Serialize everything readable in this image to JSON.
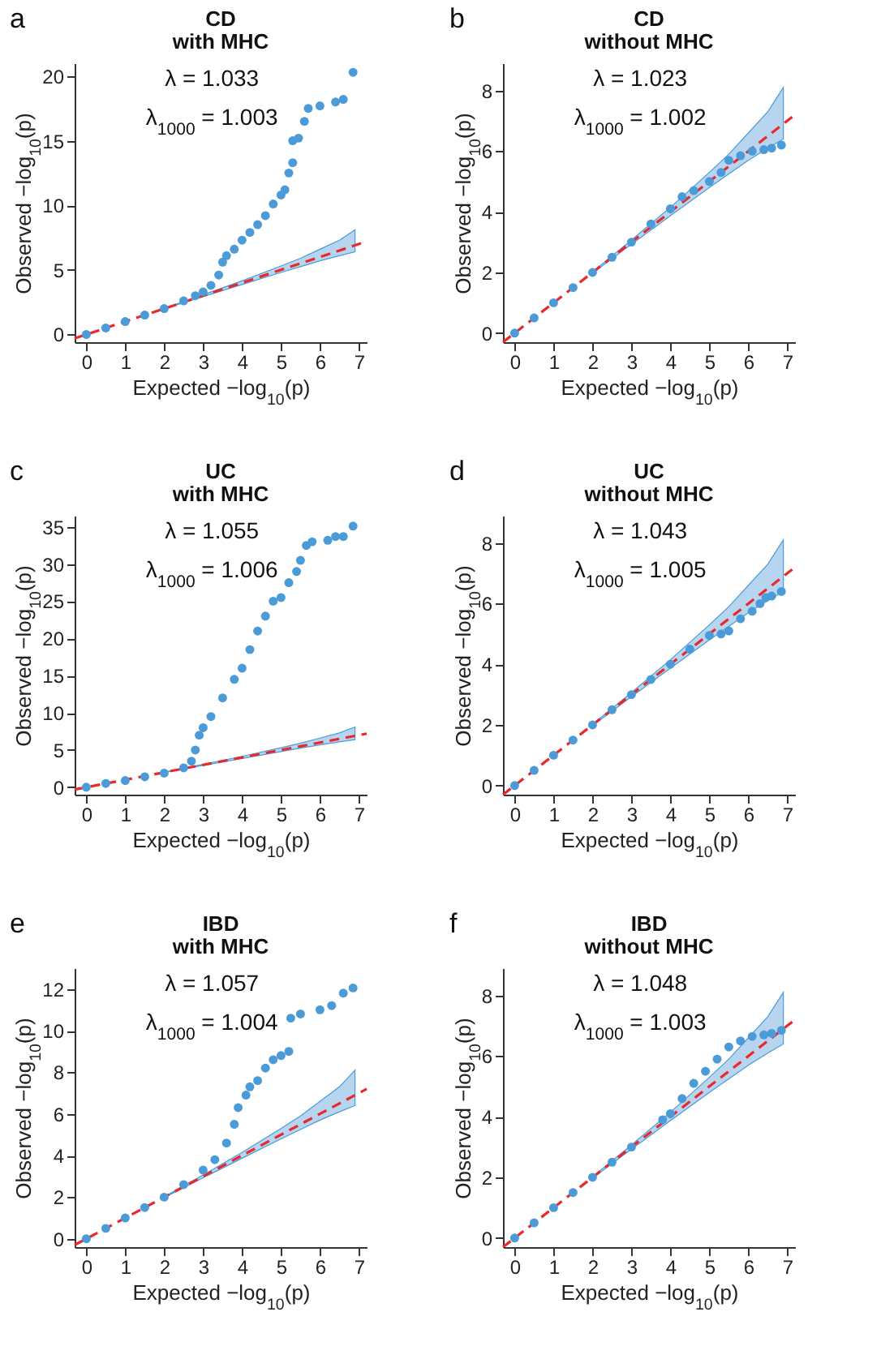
{
  "chart_data": [
    {
      "type": "scatter",
      "title": "CD",
      "subtitle": "with MHC",
      "xlabel": "Expected −log$_{10}$(p)",
      "ylabel": "Observed −log$_{10}$(p)",
      "annotations": [
        "a",
        "λ = 1.033",
        "λ$_{1000}$ = 1.003"
      ],
      "xlim": [
        -0.3,
        7.2
      ],
      "ylim": [
        -0.6,
        21
      ],
      "xticks": [
        0,
        1,
        2,
        3,
        4,
        5,
        6,
        7
      ],
      "yticks": [
        0,
        5,
        10,
        15,
        20
      ],
      "grid": false,
      "series": [
        {
          "type": "line",
          "color": "#e8282b",
          "line_style": "dashed",
          "marker": "none",
          "x": [
            -0.3,
            2,
            3,
            4,
            5,
            5.5,
            6,
            6.5,
            6.9,
            7.2
          ],
          "values": [
            -0.3,
            2,
            3,
            4,
            5,
            5.5,
            6,
            6.5,
            6.9,
            7.2
          ],
          "lower": [
            null,
            1.98,
            2.93,
            3.87,
            4.8,
            5.25,
            5.7,
            6.1,
            6.4,
            null
          ],
          "upper": [
            null,
            2.02,
            3.07,
            4.15,
            5.3,
            5.9,
            6.6,
            7.3,
            8.1,
            null
          ]
        },
        {
          "color": "#4b9bd8",
          "marker": "circle",
          "x": [
            0,
            0.5,
            1,
            1.5,
            2,
            2.5,
            2.8,
            3,
            3.2,
            3.4,
            3.5,
            3.6,
            3.8,
            4,
            4.2,
            4.4,
            4.6,
            4.8,
            5,
            5.1,
            5.2,
            5.3,
            5.3,
            5.45,
            5.6,
            5.7,
            6,
            6.4,
            6.6,
            6.85
          ],
          "values": [
            0,
            0.5,
            1,
            1.5,
            2,
            2.6,
            3,
            3.3,
            3.8,
            4.6,
            5.6,
            6.1,
            6.6,
            7.3,
            7.9,
            8.5,
            9.2,
            10.1,
            10.8,
            11.2,
            12.5,
            13.3,
            15,
            15.2,
            16.5,
            17.5,
            17.7,
            18,
            18.2,
            20.3
          ]
        }
      ]
    },
    {
      "type": "scatter",
      "title": "CD",
      "subtitle": "without MHC",
      "xlabel": "Expected −log$_{10}$(p)",
      "ylabel": "Observed −log$_{10}$(p)",
      "annotations": [
        "b",
        "λ = 1.023",
        "λ$_{1000}$ = 1.002"
      ],
      "xlim": [
        -0.3,
        7.2
      ],
      "ylim": [
        -0.3,
        8.9
      ],
      "xticks": [
        0,
        1,
        2,
        3,
        4,
        5,
        6,
        7
      ],
      "yticks": [
        0,
        2,
        4,
        6,
        8
      ],
      "grid": false,
      "series": [
        {
          "type": "line",
          "color": "#e8282b",
          "line_style": "dashed",
          "marker": "none",
          "x": [
            -0.3,
            2,
            3,
            4,
            5,
            5.5,
            6,
            6.5,
            6.9,
            7.2
          ],
          "values": [
            -0.3,
            2,
            3,
            4,
            5,
            5.5,
            6,
            6.5,
            6.9,
            7.2
          ],
          "lower": [
            null,
            1.98,
            2.93,
            3.87,
            4.8,
            5.25,
            5.7,
            6.1,
            6.4,
            null
          ],
          "upper": [
            null,
            2.02,
            3.07,
            4.15,
            5.3,
            5.9,
            6.6,
            7.3,
            8.1,
            null
          ]
        },
        {
          "color": "#4b9bd8",
          "marker": "circle",
          "x": [
            0,
            0.5,
            1,
            1.5,
            2,
            2.5,
            3,
            3.5,
            4,
            4.3,
            4.6,
            5,
            5.3,
            5.5,
            5.8,
            6.1,
            6.4,
            6.6,
            6.85
          ],
          "values": [
            0,
            0.5,
            1,
            1.5,
            2,
            2.5,
            3,
            3.6,
            4.1,
            4.5,
            4.7,
            5,
            5.3,
            5.7,
            5.85,
            6,
            6.05,
            6.1,
            6.2
          ]
        }
      ]
    },
    {
      "type": "scatter",
      "title": "UC",
      "subtitle": "with MHC",
      "xlabel": "Expected −log$_{10}$(p)",
      "ylabel": "Observed −log$_{10}$(p)",
      "annotations": [
        "c",
        "λ = 1.055",
        "λ$_{1000}$ = 1.006"
      ],
      "xlim": [
        -0.3,
        7.2
      ],
      "ylim": [
        -1,
        36.5
      ],
      "xticks": [
        0,
        1,
        2,
        3,
        4,
        5,
        6,
        7
      ],
      "yticks": [
        0,
        5,
        10,
        15,
        20,
        25,
        30,
        35
      ],
      "grid": false,
      "series": [
        {
          "type": "line",
          "color": "#e8282b",
          "line_style": "dashed",
          "marker": "none",
          "x": [
            -0.3,
            2,
            3,
            4,
            5,
            5.5,
            6,
            6.5,
            6.9,
            7.2
          ],
          "values": [
            -0.3,
            2,
            3,
            4,
            5,
            5.5,
            6,
            6.5,
            6.9,
            7.2
          ],
          "lower": [
            null,
            1.98,
            2.93,
            3.87,
            4.8,
            5.25,
            5.7,
            6.1,
            6.4,
            null
          ],
          "upper": [
            null,
            2.02,
            3.07,
            4.15,
            5.3,
            5.9,
            6.6,
            7.3,
            8.1,
            null
          ]
        },
        {
          "color": "#4b9bd8",
          "marker": "circle",
          "x": [
            0,
            0.5,
            1,
            1.5,
            2,
            2.5,
            2.7,
            2.8,
            2.9,
            3,
            3.2,
            3.5,
            3.8,
            4,
            4.2,
            4.4,
            4.6,
            4.8,
            5,
            5.2,
            5.4,
            5.5,
            5.65,
            5.8,
            6.2,
            6.4,
            6.6,
            6.85
          ],
          "values": [
            0,
            0.5,
            0.9,
            1.4,
            1.9,
            2.6,
            3.5,
            5,
            7,
            8,
            9.5,
            12,
            14.5,
            16,
            18.5,
            21,
            23,
            25,
            25.5,
            27.5,
            29,
            30.5,
            32.5,
            33,
            33.2,
            33.7,
            33.7,
            35.1
          ]
        }
      ]
    },
    {
      "type": "scatter",
      "title": "UC",
      "subtitle": "without MHC",
      "xlabel": "Expected −log$_{10}$(p)",
      "ylabel": "Observed −log$_{10}$(p)",
      "annotations": [
        "d",
        "λ = 1.043",
        "λ$_{1000}$ = 1.005"
      ],
      "xlim": [
        -0.3,
        7.2
      ],
      "ylim": [
        -0.3,
        8.9
      ],
      "xticks": [
        0,
        1,
        2,
        3,
        4,
        5,
        6,
        7
      ],
      "yticks": [
        0,
        2,
        4,
        6,
        8
      ],
      "grid": false,
      "series": [
        {
          "type": "line",
          "color": "#e8282b",
          "line_style": "dashed",
          "marker": "none",
          "x": [
            -0.3,
            2,
            3,
            4,
            5,
            5.5,
            6,
            6.5,
            6.9,
            7.2
          ],
          "values": [
            -0.3,
            2,
            3,
            4,
            5,
            5.5,
            6,
            6.5,
            6.9,
            7.2
          ],
          "lower": [
            null,
            1.98,
            2.93,
            3.87,
            4.8,
            5.25,
            5.7,
            6.1,
            6.4,
            null
          ],
          "upper": [
            null,
            2.02,
            3.07,
            4.15,
            5.3,
            5.9,
            6.6,
            7.3,
            8.1,
            null
          ]
        },
        {
          "color": "#4b9bd8",
          "marker": "circle",
          "x": [
            0,
            0.5,
            1,
            1.5,
            2,
            2.5,
            3,
            3.5,
            4,
            4.5,
            5,
            5.3,
            5.5,
            5.8,
            6.1,
            6.3,
            6.45,
            6.6,
            6.85
          ],
          "values": [
            0,
            0.5,
            1,
            1.5,
            2,
            2.5,
            3,
            3.5,
            4,
            4.5,
            4.95,
            5,
            5.1,
            5.5,
            5.75,
            6,
            6.2,
            6.25,
            6.4
          ]
        }
      ]
    },
    {
      "type": "scatter",
      "title": "IBD",
      "subtitle": "with MHC",
      "xlabel": "Expected −log$_{10}$(p)",
      "ylabel": "Observed −log$_{10}$(p)",
      "annotations": [
        "e",
        "λ = 1.057",
        "λ$_{1000}$ = 1.004"
      ],
      "xlim": [
        -0.3,
        7.2
      ],
      "ylim": [
        -0.4,
        13
      ],
      "xticks": [
        0,
        1,
        2,
        3,
        4,
        5,
        6,
        7
      ],
      "yticks": [
        0,
        2,
        4,
        6,
        8,
        10,
        12
      ],
      "grid": false,
      "series": [
        {
          "type": "line",
          "color": "#e8282b",
          "line_style": "dashed",
          "marker": "none",
          "x": [
            -0.3,
            2,
            3,
            4,
            5,
            5.5,
            6,
            6.5,
            6.9,
            7.2
          ],
          "values": [
            -0.3,
            2,
            3,
            4,
            5,
            5.5,
            6,
            6.5,
            6.9,
            7.2
          ],
          "lower": [
            null,
            1.98,
            2.93,
            3.87,
            4.8,
            5.25,
            5.7,
            6.1,
            6.4,
            null
          ],
          "upper": [
            null,
            2.02,
            3.07,
            4.15,
            5.3,
            5.9,
            6.6,
            7.3,
            8.1,
            null
          ]
        },
        {
          "color": "#4b9bd8",
          "marker": "circle",
          "x": [
            0,
            0.5,
            1,
            1.5,
            2,
            2.5,
            3,
            3.3,
            3.6,
            3.8,
            3.9,
            4.1,
            4.2,
            4.4,
            4.6,
            4.8,
            5,
            5.2,
            5.25,
            5.5,
            6,
            6.3,
            6.6,
            6.85
          ],
          "values": [
            0,
            0.5,
            1,
            1.5,
            2,
            2.6,
            3.3,
            3.8,
            4.6,
            5.5,
            6.3,
            6.9,
            7.3,
            7.6,
            8.2,
            8.6,
            8.8,
            9,
            10.6,
            10.8,
            11,
            11.2,
            11.8,
            12.05
          ]
        }
      ]
    },
    {
      "type": "scatter",
      "title": "IBD",
      "subtitle": "without MHC",
      "xlabel": "Expected −log$_{10}$(p)",
      "ylabel": "Observed −log$_{10}$(p)",
      "annotations": [
        "f",
        "λ = 1.048",
        "λ$_{1000}$ = 1.003"
      ],
      "xlim": [
        -0.3,
        7.2
      ],
      "ylim": [
        -0.3,
        8.9
      ],
      "xticks": [
        0,
        1,
        2,
        3,
        4,
        5,
        6,
        7
      ],
      "yticks": [
        0,
        2,
        4,
        6,
        8
      ],
      "grid": false,
      "series": [
        {
          "type": "line",
          "color": "#e8282b",
          "line_style": "dashed",
          "marker": "none",
          "x": [
            -0.3,
            2,
            3,
            4,
            5,
            5.5,
            6,
            6.5,
            6.9,
            7.2
          ],
          "values": [
            -0.3,
            2,
            3,
            4,
            5,
            5.5,
            6,
            6.5,
            6.9,
            7.2
          ],
          "lower": [
            null,
            1.98,
            2.93,
            3.87,
            4.8,
            5.25,
            5.7,
            6.1,
            6.4,
            null
          ],
          "upper": [
            null,
            2.02,
            3.07,
            4.15,
            5.3,
            5.9,
            6.6,
            7.3,
            8.1,
            null
          ]
        },
        {
          "color": "#4b9bd8",
          "marker": "circle",
          "x": [
            0,
            0.5,
            1,
            1.5,
            2,
            2.5,
            3,
            3.8,
            4,
            4.3,
            4.6,
            4.9,
            5.2,
            5.5,
            5.8,
            6.1,
            6.4,
            6.6,
            6.85
          ],
          "values": [
            0,
            0.5,
            1,
            1.5,
            2,
            2.5,
            3,
            3.9,
            4.1,
            4.6,
            5.1,
            5.5,
            5.9,
            6.3,
            6.5,
            6.65,
            6.7,
            6.75,
            6.85
          ]
        }
      ]
    }
  ]
}
